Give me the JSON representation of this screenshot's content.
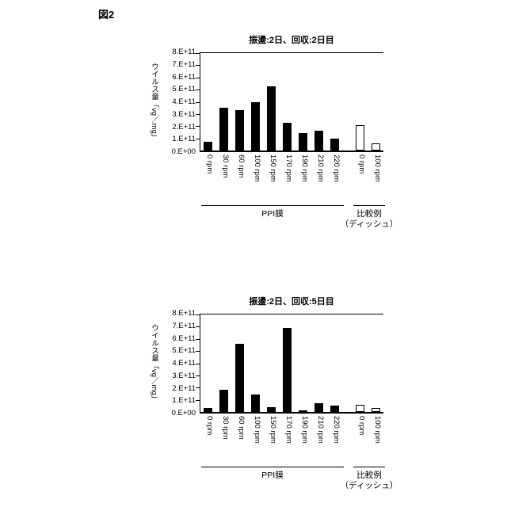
{
  "figure_label": "図2",
  "chart_data": [
    {
      "type": "bar",
      "title": "振盪:2日、回収:2日目",
      "ylabel": "ウイルス量「vg／mg」",
      "ylim": [
        0,
        800000000000.0
      ],
      "grid": false,
      "legend": null,
      "bar_color": "#000000",
      "open_bar_color": "#ffffff",
      "ytick_labels": [
        "0.E+00",
        "1.E+11",
        "2.E+11",
        "3.E+11",
        "4.E+11",
        "5.E+11",
        "6.E+11",
        "7.E+11",
        "8.E+11"
      ],
      "categories": [
        "0 rpm",
        "30 rpm",
        "60 rpm",
        "100 rpm",
        "150 rpm",
        "170 rpm",
        "190 rpm",
        "210 rpm",
        "220 rpm",
        "0 rpm",
        "100 rpm"
      ],
      "values": [
        70000000000.0,
        350000000000.0,
        330000000000.0,
        400000000000.0,
        530000000000.0,
        230000000000.0,
        140000000000.0,
        160000000000.0,
        100000000000.0,
        210000000000.0,
        60000000000.0
      ],
      "bar_styles": [
        "filled",
        "filled",
        "filled",
        "filled",
        "filled",
        "filled",
        "filled",
        "filled",
        "filled",
        "open",
        "open"
      ],
      "gap_before_index": 9,
      "groups": [
        {
          "label_lines": [
            "PPI膜"
          ],
          "start": 0,
          "end": 8
        },
        {
          "label_lines": [
            "比較例",
            "（ディッシュ）"
          ],
          "start": 9,
          "end": 10
        }
      ]
    },
    {
      "type": "bar",
      "title": "振盪:2日、回収:5日目",
      "ylabel": "ウイルス量「vg／mg」",
      "ylim": [
        0,
        800000000000.0
      ],
      "grid": false,
      "legend": null,
      "bar_color": "#000000",
      "open_bar_color": "#ffffff",
      "ytick_labels": [
        "0.E+00",
        "1.E+11",
        "2.E+11",
        "3.E+11",
        "4.E+11",
        "5.E+11",
        "6.E+11",
        "7.E+11",
        "8.E+11"
      ],
      "categories": [
        "0 rpm",
        "30 rpm",
        "60 rpm",
        "100 rpm",
        "150 rpm",
        "170 rpm",
        "190 rpm",
        "210 rpm",
        "220 rpm",
        "0 rpm",
        "100 rpm"
      ],
      "values": [
        30000000000.0,
        180000000000.0,
        560000000000.0,
        140000000000.0,
        40000000000.0,
        690000000000.0,
        15000000000.0,
        70000000000.0,
        50000000000.0,
        60000000000.0,
        30000000000.0
      ],
      "bar_styles": [
        "filled",
        "filled",
        "filled",
        "filled",
        "filled",
        "filled",
        "filled",
        "filled",
        "filled",
        "open",
        "open"
      ],
      "gap_before_index": 9,
      "groups": [
        {
          "label_lines": [
            "PPI膜"
          ],
          "start": 0,
          "end": 8
        },
        {
          "label_lines": [
            "比較例",
            "（ディッシュ）"
          ],
          "start": 9,
          "end": 10
        }
      ]
    }
  ]
}
